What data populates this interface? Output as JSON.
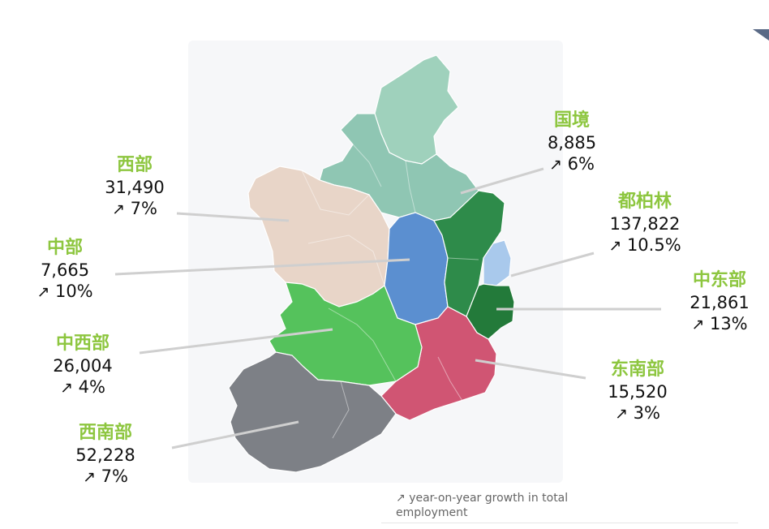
{
  "regions": {
    "border": {
      "name": "国境",
      "value": "8,885",
      "growth": "6%",
      "color": "#8fc6b3"
    },
    "dublin": {
      "name": "都柏林",
      "value": "137,822",
      "growth": "10.5%",
      "color": "#2e8b4a"
    },
    "mid_east": {
      "name": "中东部",
      "value": "21,861",
      "growth": "13%",
      "color": "#237a3a"
    },
    "south_east": {
      "name": "东南部",
      "value": "15,520",
      "growth": "3%",
      "color": "#d05573"
    },
    "south_west": {
      "name": "西南部",
      "value": "52,228",
      "growth": "7%",
      "color": "#7d8086"
    },
    "mid_west": {
      "name": "中西部",
      "value": "26,004",
      "growth": "4%",
      "color": "#55c25c"
    },
    "midlands": {
      "name": "中部",
      "value": "7,665",
      "growth": "10%",
      "color": "#5b8fd0"
    },
    "west": {
      "name": "西部",
      "value": "31,490",
      "growth": "7%",
      "color": "#e8d5c8"
    }
  },
  "northern_ireland_color": "#9fd1bc",
  "dublin_city_color": "#a9c9ec",
  "arrow_glyph": "↗",
  "footnote": "year-on-year growth in total employment",
  "label_colors": {
    "name": "#8dc63f",
    "figure": "#111111"
  }
}
